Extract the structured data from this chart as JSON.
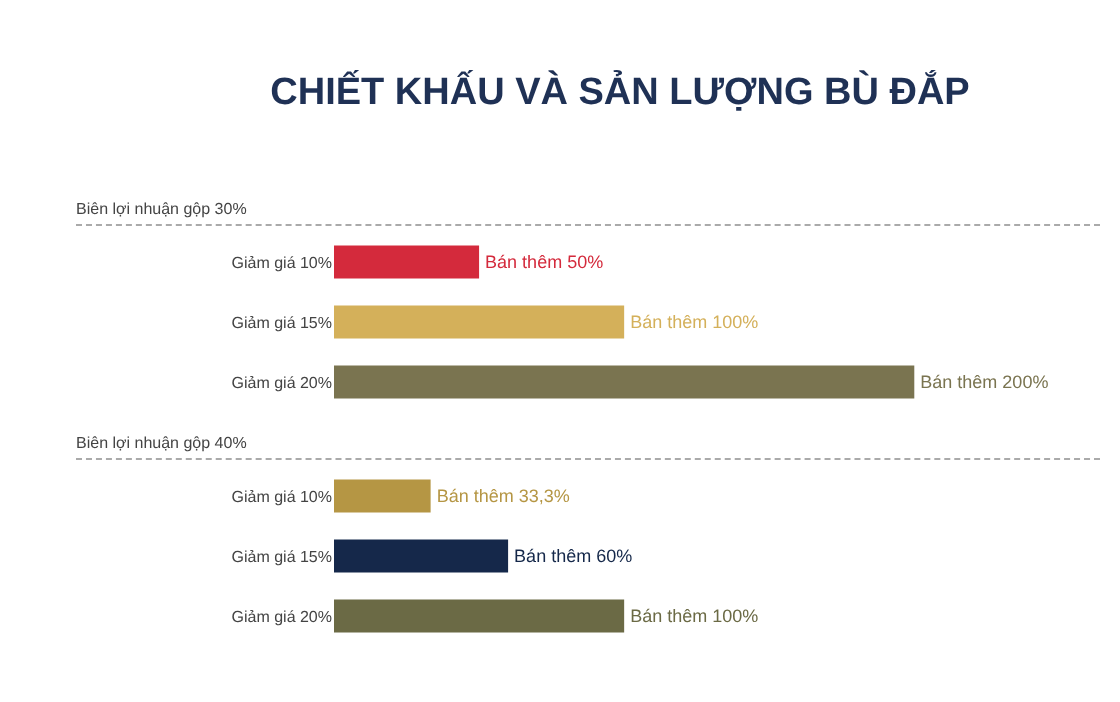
{
  "chart_data": [
    {
      "type": "bar",
      "orientation": "horizontal",
      "title": "CHIẾT KHẤU VÀ SẢN LƯỢNG BÙ ĐẮP",
      "subtitle": "Biên lợi nhuận gộp 30%",
      "categories": [
        "Giảm giá 10%",
        "Giảm giá 15%",
        "Giảm giá 20%"
      ],
      "values": [
        50,
        100,
        200
      ],
      "colors": [
        "#d42a3c",
        "#d4b05a",
        "#7a7450"
      ],
      "value_labels": [
        "Bán thêm 50%",
        "Bán thêm 100%",
        "Bán thêm 200%"
      ],
      "legend": false,
      "grid": false
    },
    {
      "type": "bar",
      "orientation": "horizontal",
      "subtitle": "Biên lợi nhuận gộp 40%",
      "categories": [
        "Giảm giá 10%",
        "Giảm giá 15%",
        "Giảm giá 20%"
      ],
      "values": [
        33.3,
        60,
        100
      ],
      "colors": [
        "#b59644",
        "#15284a",
        "#6b6a45"
      ],
      "value_labels": [
        "Bán thêm 33,3%",
        "Bán thêm 60%",
        "Bán thêm 100%"
      ],
      "legend": false,
      "grid": false
    }
  ]
}
